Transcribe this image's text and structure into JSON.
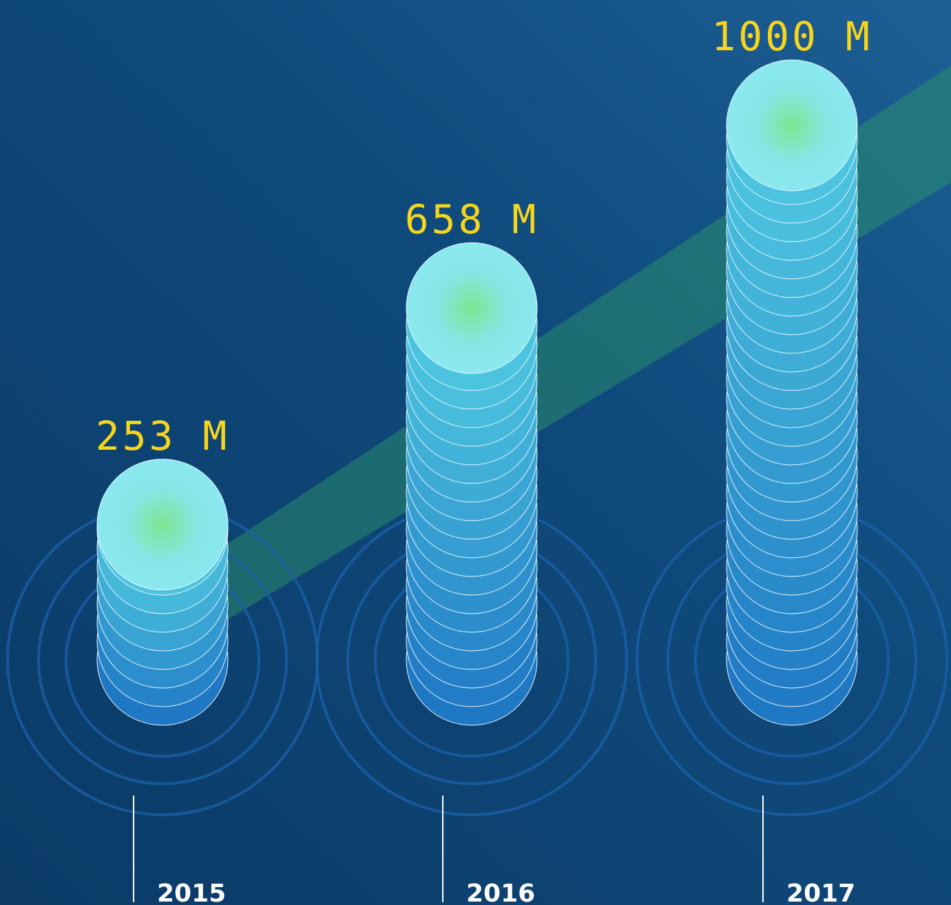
{
  "chart_data": {
    "type": "bar",
    "categories": [
      "2015",
      "2016",
      "2017"
    ],
    "values": [
      253,
      658,
      1000
    ],
    "value_labels": [
      "253 M",
      "658 M",
      "1000 M"
    ],
    "color": "#2a8fd0"
  }
}
